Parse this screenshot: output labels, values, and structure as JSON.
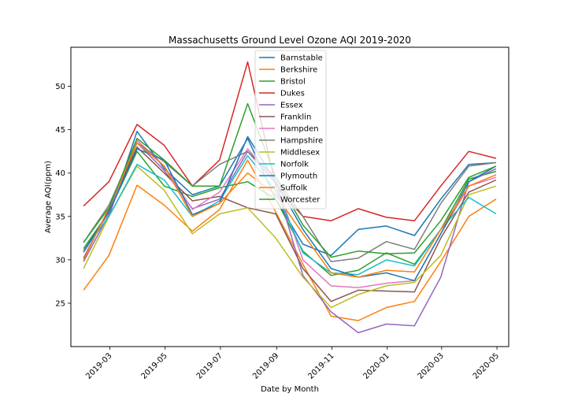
{
  "chart_data": {
    "type": "line",
    "title": "Massachusetts Ground Level Ozone AQI 2019-2020",
    "xlabel": "Date by Month",
    "ylabel": "Average AQI(ppm)",
    "ylim": [
      20,
      54.5
    ],
    "xlim": [
      "2019-01-17",
      "2020-05-14"
    ],
    "grid": false,
    "legend_position": "top-center",
    "x": [
      "2019-01-31",
      "2019-02-28",
      "2019-03-31",
      "2019-04-30",
      "2019-05-31",
      "2019-06-30",
      "2019-07-31",
      "2019-08-31",
      "2019-09-30",
      "2019-10-31",
      "2019-11-30",
      "2019-12-31",
      "2020-01-31",
      "2020-02-29",
      "2020-03-31",
      "2020-04-30"
    ],
    "xticks": [
      "2019-03",
      "2019-05",
      "2019-07",
      "2019-09",
      "2019-11",
      "2020-01",
      "2020-03",
      "2020-05"
    ],
    "yticks": [
      25,
      30,
      35,
      40,
      45,
      50
    ],
    "series": [
      {
        "name": "Barnstable",
        "color": "#1f77b4",
        "values": [
          31.0,
          35.0,
          44.8,
          40.5,
          37.5,
          38.5,
          44.0,
          37.0,
          31.8,
          30.5,
          33.5,
          33.9,
          32.8,
          37.0,
          41.0,
          41.2
        ]
      },
      {
        "name": "Berkshire",
        "color": "#ff7f0e",
        "values": [
          26.5,
          30.5,
          38.6,
          36.3,
          33.3,
          35.8,
          41.5,
          35.5,
          29.5,
          23.5,
          23.0,
          24.5,
          25.2,
          29.8,
          35.0,
          37.0
        ]
      },
      {
        "name": "Bristol",
        "color": "#2ca02c",
        "values": [
          31.3,
          35.5,
          42.5,
          38.5,
          37.3,
          38.3,
          39.0,
          37.0,
          31.0,
          28.2,
          28.8,
          30.8,
          29.5,
          33.5,
          39.3,
          40.2
        ]
      },
      {
        "name": "Dukes",
        "color": "#d62728",
        "values": [
          36.2,
          39.0,
          45.6,
          43.2,
          38.5,
          41.5,
          52.8,
          38.5,
          35.0,
          34.5,
          35.9,
          34.9,
          34.5,
          38.5,
          42.5,
          41.7
        ]
      },
      {
        "name": "Essex",
        "color": "#9467bd",
        "values": [
          29.8,
          35.2,
          43.5,
          40.3,
          35.9,
          37.0,
          42.5,
          38.8,
          28.2,
          24.0,
          21.6,
          22.6,
          22.4,
          28.0,
          39.0,
          40.5
        ]
      },
      {
        "name": "Franklin",
        "color": "#8c564b",
        "values": [
          30.2,
          35.8,
          43.0,
          40.0,
          36.8,
          37.3,
          36.0,
          35.3,
          29.0,
          25.2,
          26.5,
          26.4,
          26.3,
          32.5,
          37.8,
          39.2
        ]
      },
      {
        "name": "Hampden",
        "color": "#e377c2",
        "values": [
          30.8,
          35.5,
          43.8,
          40.8,
          35.8,
          37.8,
          42.8,
          39.0,
          30.0,
          27.0,
          26.8,
          27.3,
          27.6,
          33.0,
          38.5,
          39.5
        ]
      },
      {
        "name": "Hampshire",
        "color": "#7f7f7f",
        "values": [
          32.0,
          36.3,
          43.5,
          41.3,
          38.5,
          41.0,
          42.5,
          39.5,
          35.0,
          29.8,
          30.2,
          32.1,
          31.2,
          36.5,
          40.8,
          41.2
        ]
      },
      {
        "name": "Middlesex",
        "color": "#bcbd22",
        "values": [
          29.0,
          35.0,
          40.8,
          38.0,
          33.0,
          35.3,
          36.0,
          32.5,
          28.0,
          24.5,
          26.0,
          27.0,
          27.4,
          30.5,
          37.5,
          38.5
        ]
      },
      {
        "name": "Norfolk",
        "color": "#17becf",
        "values": [
          31.0,
          35.0,
          41.0,
          39.2,
          35.0,
          36.8,
          42.0,
          38.0,
          30.8,
          28.5,
          28.3,
          30.0,
          29.3,
          33.5,
          37.2,
          35.3
        ]
      },
      {
        "name": "Plymouth",
        "color": "#1f77b4",
        "values": [
          31.0,
          35.5,
          42.8,
          41.5,
          35.2,
          36.5,
          44.2,
          39.0,
          33.5,
          29.0,
          28.0,
          28.5,
          27.6,
          33.0,
          39.0,
          40.8
        ]
      },
      {
        "name": "Suffolk",
        "color": "#ff7f0e",
        "values": [
          30.0,
          36.0,
          43.5,
          40.8,
          35.0,
          36.5,
          40.0,
          37.5,
          33.0,
          28.5,
          28.0,
          28.8,
          28.6,
          33.5,
          38.5,
          39.8
        ]
      },
      {
        "name": "Worcester",
        "color": "#2ca02c",
        "values": [
          32.0,
          36.0,
          44.0,
          41.5,
          38.5,
          38.5,
          48.0,
          39.5,
          34.0,
          30.3,
          31.0,
          30.7,
          30.8,
          34.5,
          39.5,
          40.8
        ]
      }
    ]
  }
}
